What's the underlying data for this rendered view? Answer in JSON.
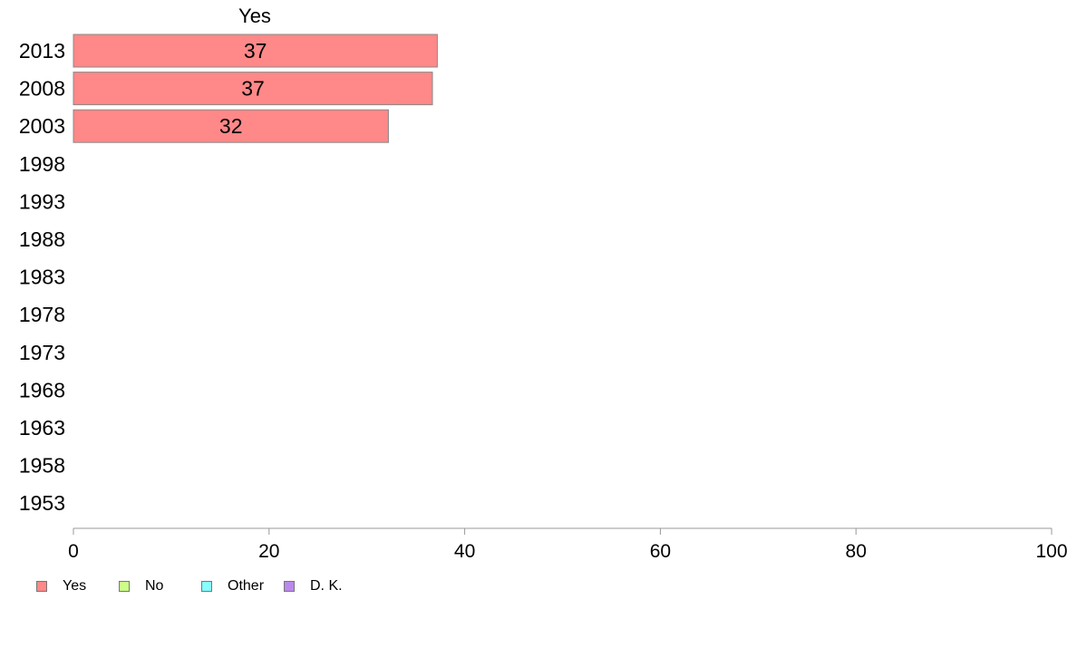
{
  "chart_data": {
    "type": "bar",
    "orientation": "horizontal",
    "stacked": true,
    "title": "",
    "xlabel": "",
    "ylabel": "",
    "xlim": [
      0,
      100
    ],
    "x_ticks": [
      "0",
      "20",
      "40",
      "60",
      "80",
      "100"
    ],
    "categories": [
      "2013",
      "2008",
      "2003",
      "1998",
      "1993",
      "1988",
      "1983",
      "1978",
      "1973",
      "1968",
      "1963",
      "1958",
      "1953"
    ],
    "series": [
      {
        "name": "Yes",
        "color": "#FF8888",
        "values": [
          37.2,
          36.7,
          32.2,
          null,
          null,
          null,
          null,
          null,
          null,
          null,
          null,
          null,
          null
        ],
        "labels": [
          "37",
          "37",
          "32",
          "",
          "",
          "",
          "",
          "",
          "",
          "",
          "",
          "",
          ""
        ]
      },
      {
        "name": "No",
        "color": "#CCFF88",
        "values": [
          null,
          null,
          null,
          null,
          null,
          null,
          null,
          null,
          null,
          null,
          null,
          null,
          null
        ]
      },
      {
        "name": "Other",
        "color": "#88FFFF",
        "values": [
          null,
          null,
          null,
          null,
          null,
          null,
          null,
          null,
          null,
          null,
          null,
          null,
          null
        ]
      },
      {
        "name": "D. K.",
        "color": "#BB88EE",
        "values": [
          null,
          null,
          null,
          null,
          null,
          null,
          null,
          null,
          null,
          null,
          null,
          null,
          null
        ]
      }
    ],
    "column_label": "Yes",
    "grid": false,
    "legend_position": "bottom-left"
  }
}
